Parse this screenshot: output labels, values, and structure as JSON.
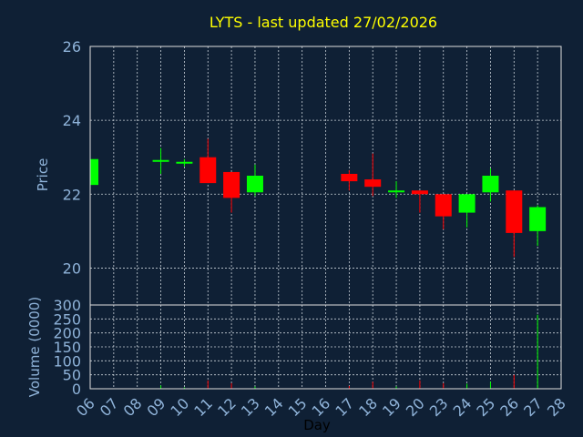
{
  "chart_data": [
    {
      "type": "candlestick",
      "title": "LYTS - last updated 27/02/2026",
      "ylabel": "Price",
      "ylim": [
        19,
        26
      ],
      "yticks": [
        20,
        22,
        24,
        26
      ],
      "grid": true,
      "x_tick_labels": [
        "06",
        "07",
        "08",
        "09",
        "10",
        "11",
        "12",
        "13",
        "14",
        "15",
        "16",
        "17",
        "18",
        "19",
        "20",
        "23",
        "24",
        "25",
        "26",
        "27",
        "28"
      ],
      "colors": {
        "up": "#00ff00",
        "down": "#ff0000",
        "background": "#0f2035",
        "grid": "#c8d0d8",
        "text": "#8fb3d9",
        "title": "#ffff00"
      },
      "candles": [
        {
          "day": "06",
          "open": 22.25,
          "close": 22.95,
          "high": 22.95,
          "low": 22.25
        },
        {
          "day": "09",
          "open": 22.9,
          "close": 22.9,
          "high": 23.25,
          "low": 22.55
        },
        {
          "day": "10",
          "open": 22.85,
          "close": 22.85,
          "high": 22.95,
          "low": 22.75
        },
        {
          "day": "11",
          "open": 23.0,
          "close": 22.3,
          "high": 23.5,
          "low": 22.3
        },
        {
          "day": "12",
          "open": 22.6,
          "close": 21.9,
          "high": 22.6,
          "low": 21.5
        },
        {
          "day": "13",
          "open": 22.05,
          "close": 22.5,
          "high": 22.8,
          "low": 21.95
        },
        {
          "day": "17",
          "open": 22.55,
          "close": 22.35,
          "high": 22.65,
          "low": 22.1
        },
        {
          "day": "18",
          "open": 22.4,
          "close": 22.2,
          "high": 23.1,
          "low": 21.95
        },
        {
          "day": "19",
          "open": 22.05,
          "close": 22.1,
          "high": 22.35,
          "low": 21.9
        },
        {
          "day": "20",
          "open": 22.1,
          "close": 22.0,
          "high": 22.1,
          "low": 21.5
        },
        {
          "day": "23",
          "open": 22.0,
          "close": 21.4,
          "high": 22.0,
          "low": 21.05
        },
        {
          "day": "24",
          "open": 21.5,
          "close": 22.0,
          "high": 22.0,
          "low": 21.1
        },
        {
          "day": "25",
          "open": 22.05,
          "close": 22.5,
          "high": 22.7,
          "low": 21.8
        },
        {
          "day": "26",
          "open": 22.1,
          "close": 20.95,
          "high": 22.1,
          "low": 20.3
        },
        {
          "day": "27",
          "open": 21.0,
          "close": 21.65,
          "high": 21.7,
          "low": 20.6
        }
      ]
    },
    {
      "type": "bar",
      "ylabel": "Volume (0000)",
      "xlabel": "Day",
      "ylim": [
        0,
        300
      ],
      "yticks": [
        0,
        50,
        100,
        150,
        200,
        250,
        300
      ],
      "grid": true,
      "categories": [
        "06",
        "09",
        "10",
        "11",
        "12",
        "13",
        "17",
        "18",
        "19",
        "20",
        "23",
        "24",
        "25",
        "26",
        "27"
      ],
      "values": [
        8,
        12,
        5,
        30,
        20,
        8,
        10,
        25,
        8,
        30,
        20,
        18,
        25,
        50,
        265
      ],
      "direction": [
        "up",
        "up",
        "up",
        "down",
        "down",
        "up",
        "down",
        "down",
        "up",
        "down",
        "down",
        "up",
        "up",
        "down",
        "up"
      ]
    }
  ]
}
